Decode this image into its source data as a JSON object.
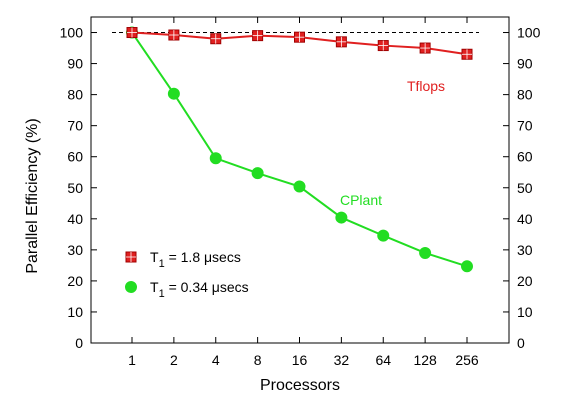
{
  "chart_data": {
    "type": "line",
    "xlabel": "Processors",
    "ylabel": "Parallel Efficiency (%)",
    "categories": [
      "1",
      "2",
      "4",
      "8",
      "16",
      "32",
      "64",
      "128",
      "256"
    ],
    "ylim": [
      0,
      105
    ],
    "yticks": [
      0,
      10,
      20,
      30,
      40,
      50,
      60,
      70,
      80,
      90,
      100
    ],
    "reference_line": {
      "y": 100,
      "style": "dashed"
    },
    "grid": false,
    "right_axis_mirrored": true,
    "series": [
      {
        "name": "Tflops",
        "color": "#e02020",
        "marker": "square",
        "values": [
          100,
          99.2,
          98,
          99,
          98.5,
          97,
          95.8,
          95,
          93
        ]
      },
      {
        "name": "CPlant",
        "color": "#22dd22",
        "marker": "circle",
        "values": [
          100,
          80.3,
          59.5,
          54.7,
          50.4,
          40.4,
          34.6,
          29,
          24.7
        ]
      }
    ],
    "legend": {
      "placement": "lower-left",
      "entries": [
        {
          "series": "Tflops",
          "base": "T",
          "subscript": "1",
          "rest": " = 1.8 μsecs"
        },
        {
          "series": "CPlant",
          "base": "T",
          "subscript": "1",
          "rest": " = 0.34 μsecs"
        }
      ]
    }
  }
}
